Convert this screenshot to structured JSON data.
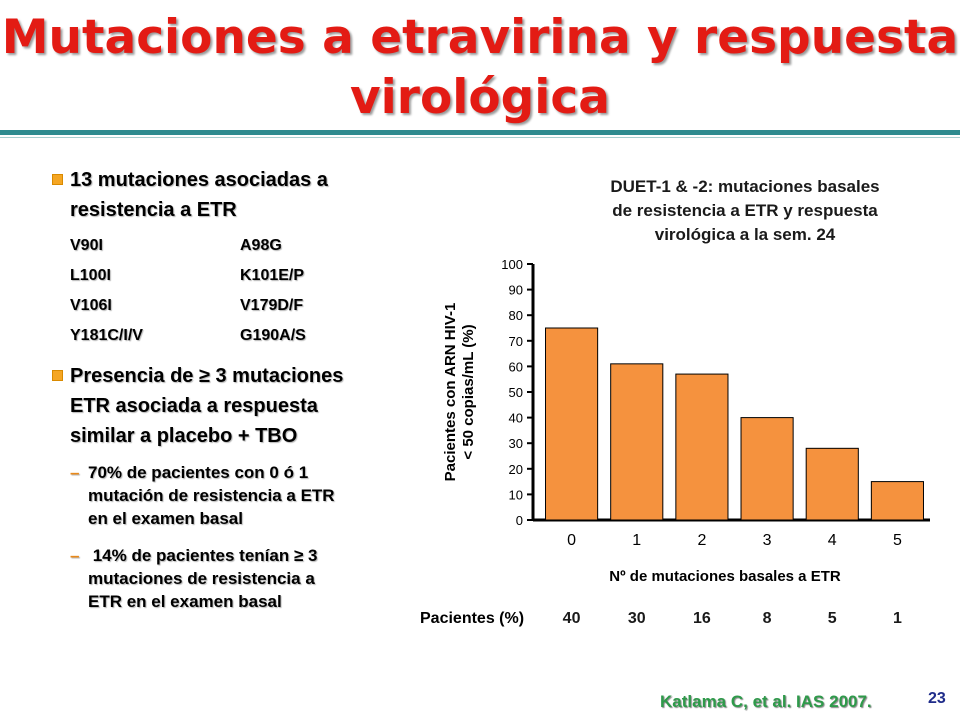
{
  "title": {
    "line1": "Mutaciones a etravirina y respuesta",
    "line2": "virológica"
  },
  "bullets": {
    "b1_line1": "13 mutaciones asociadas a",
    "b1_line2": "resistencia a ETR",
    "mutations": [
      "V90I",
      "A98G",
      "L100I",
      "K101E/P",
      "V106I",
      "V179D/F",
      "Y181C/I/V",
      "G190A/S"
    ],
    "b2_line1": "Presencia de ≥ 3 mutaciones",
    "b2_line2": "ETR asociada a respuesta",
    "b2_line3": "similar a placebo + TBO",
    "sub1_dash": "–",
    "sub1_line1": "70% de pacientes con 0 ó 1",
    "sub1_line2": "mutación de resistencia a ETR",
    "sub1_line3": "en el examen basal",
    "sub2_dash": "–",
    "sub2_line1": " 14% de pacientes tenían ≥ 3",
    "sub2_line2": "mutaciones de resistencia a",
    "sub2_line3": "ETR en el examen basal"
  },
  "chart_data": {
    "type": "bar",
    "title_line1": "DUET-1 & -2: mutaciones basales",
    "title_line2": "de resistencia a ETR y respuesta",
    "title_line3": "virológica a la sem. 24",
    "categories": [
      "0",
      "1",
      "2",
      "3",
      "4",
      "5"
    ],
    "values": [
      75,
      61,
      57,
      40,
      28,
      15
    ],
    "yticks": [
      0,
      10,
      20,
      30,
      40,
      50,
      60,
      70,
      80,
      90,
      100
    ],
    "ylim": [
      0,
      100
    ],
    "ylabel_line1": "Pacientes con ARN HIV-1",
    "ylabel_line2": "< 50 copias/mL (%)",
    "xlabel": "Nº de mutaciones basales a ETR",
    "bar_color": "#f5923e",
    "patients_label": "Pacientes (%)",
    "patients_pct": [
      "40",
      "30",
      "16",
      "8",
      "5",
      "1"
    ]
  },
  "citation": "Katlama C, et al. IAS 2007.",
  "page_number": "23"
}
